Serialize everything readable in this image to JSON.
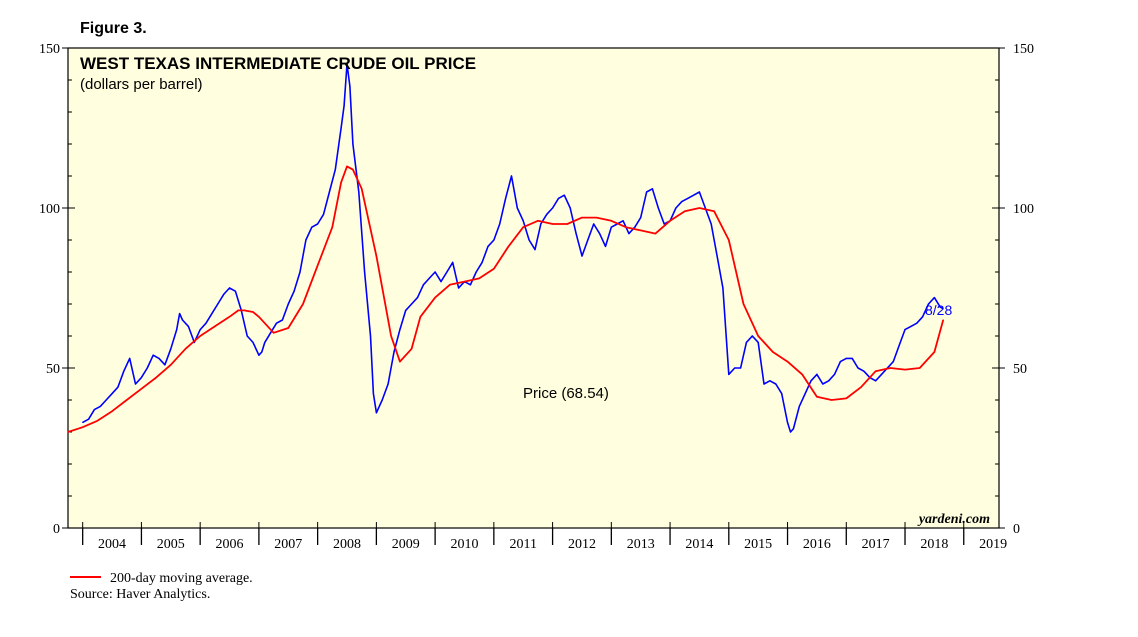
{
  "figure_label": "Figure 3.",
  "watermark": "yardeni.com",
  "footer": {
    "legend_label": "200-day moving average.",
    "source": "Source: Haver Analytics."
  },
  "colors": {
    "plot_background": "#ffffe0",
    "price": "#0000ff",
    "moving_average": "#ff0000",
    "end_label": "#0000ff"
  },
  "chart_data": {
    "type": "line",
    "title": "WEST TEXAS INTERMEDIATE CRUDE OIL PRICE",
    "subtitle": "(dollars per barrel)",
    "xlabel": "",
    "ylabel": "",
    "xlim": [
      2003.75,
      2019.6
    ],
    "ylim": [
      0,
      150
    ],
    "y_ticks": [
      0,
      50,
      100,
      150
    ],
    "x_tick_labels": [
      "2004",
      "2005",
      "2006",
      "2007",
      "2008",
      "2009",
      "2010",
      "2011",
      "2012",
      "2013",
      "2014",
      "2015",
      "2016",
      "2017",
      "2018",
      "2019"
    ],
    "grid": false,
    "legend_position": "bottom-left",
    "annotations": {
      "series_label": "Price (68.54)",
      "end_label": "8/28"
    },
    "series": [
      {
        "name": "Price",
        "x": [
          2004.0,
          2004.1,
          2004.2,
          2004.3,
          2004.4,
          2004.5,
          2004.6,
          2004.7,
          2004.8,
          2004.9,
          2005.0,
          2005.1,
          2005.2,
          2005.3,
          2005.4,
          2005.5,
          2005.6,
          2005.65,
          2005.7,
          2005.8,
          2005.9,
          2006.0,
          2006.1,
          2006.2,
          2006.3,
          2006.4,
          2006.5,
          2006.6,
          2006.7,
          2006.8,
          2006.9,
          2007.0,
          2007.05,
          2007.1,
          2007.2,
          2007.3,
          2007.4,
          2007.5,
          2007.6,
          2007.7,
          2007.8,
          2007.9,
          2008.0,
          2008.1,
          2008.2,
          2008.3,
          2008.4,
          2008.45,
          2008.5,
          2008.55,
          2008.6,
          2008.7,
          2008.8,
          2008.9,
          2008.95,
          2009.0,
          2009.1,
          2009.2,
          2009.3,
          2009.4,
          2009.5,
          2009.6,
          2009.7,
          2009.8,
          2009.9,
          2010.0,
          2010.1,
          2010.2,
          2010.3,
          2010.4,
          2010.5,
          2010.6,
          2010.7,
          2010.8,
          2010.9,
          2011.0,
          2011.1,
          2011.2,
          2011.3,
          2011.4,
          2011.5,
          2011.6,
          2011.7,
          2011.8,
          2011.9,
          2012.0,
          2012.1,
          2012.2,
          2012.3,
          2012.4,
          2012.5,
          2012.6,
          2012.7,
          2012.8,
          2012.9,
          2013.0,
          2013.1,
          2013.2,
          2013.3,
          2013.4,
          2013.5,
          2013.6,
          2013.7,
          2013.8,
          2013.9,
          2014.0,
          2014.1,
          2014.2,
          2014.3,
          2014.4,
          2014.5,
          2014.6,
          2014.7,
          2014.8,
          2014.9,
          2015.0,
          2015.1,
          2015.2,
          2015.3,
          2015.4,
          2015.5,
          2015.6,
          2015.7,
          2015.8,
          2015.9,
          2016.0,
          2016.05,
          2016.1,
          2016.2,
          2016.3,
          2016.4,
          2016.5,
          2016.6,
          2016.7,
          2016.8,
          2016.9,
          2017.0,
          2017.1,
          2017.2,
          2017.3,
          2017.4,
          2017.5,
          2017.6,
          2017.7,
          2017.8,
          2017.9,
          2018.0,
          2018.1,
          2018.2,
          2018.3,
          2018.4,
          2018.5,
          2018.6,
          2018.65
        ],
        "values": [
          33,
          34,
          37,
          38,
          40,
          42,
          44,
          49,
          53,
          45,
          47,
          50,
          54,
          53,
          51,
          56,
          62,
          67,
          65,
          63,
          58,
          62,
          64,
          67,
          70,
          73,
          75,
          74,
          68,
          60,
          58,
          54,
          55,
          58,
          61,
          64,
          65,
          70,
          74,
          80,
          90,
          94,
          95,
          98,
          105,
          112,
          125,
          132,
          145,
          138,
          120,
          105,
          80,
          60,
          42,
          36,
          40,
          45,
          55,
          62,
          68,
          70,
          72,
          76,
          78,
          80,
          77,
          80,
          83,
          75,
          77,
          76,
          80,
          83,
          88,
          90,
          95,
          103,
          110,
          100,
          96,
          90,
          87,
          95,
          98,
          100,
          103,
          104,
          100,
          92,
          85,
          90,
          95,
          92,
          88,
          94,
          95,
          96,
          92,
          94,
          97,
          105,
          106,
          100,
          95,
          96,
          100,
          102,
          103,
          104,
          105,
          100,
          95,
          85,
          75,
          48,
          50,
          50,
          58,
          60,
          58,
          45,
          46,
          45,
          42,
          33,
          30,
          31,
          38,
          42,
          46,
          48,
          45,
          46,
          48,
          52,
          53,
          53,
          50,
          49,
          47,
          46,
          48,
          50,
          52,
          57,
          62,
          63,
          64,
          66,
          70,
          72,
          69,
          68.54
        ]
      },
      {
        "name": "200-day moving average",
        "x": [
          2003.75,
          2004.0,
          2004.25,
          2004.5,
          2004.75,
          2005.0,
          2005.25,
          2005.5,
          2005.75,
          2006.0,
          2006.25,
          2006.5,
          2006.65,
          2006.75,
          2006.9,
          2007.0,
          2007.25,
          2007.5,
          2007.75,
          2008.0,
          2008.25,
          2008.4,
          2008.5,
          2008.6,
          2008.75,
          2009.0,
          2009.25,
          2009.4,
          2009.6,
          2009.75,
          2010.0,
          2010.25,
          2010.5,
          2010.75,
          2011.0,
          2011.25,
          2011.5,
          2011.75,
          2012.0,
          2012.25,
          2012.5,
          2012.75,
          2013.0,
          2013.25,
          2013.5,
          2013.75,
          2014.0,
          2014.25,
          2014.5,
          2014.75,
          2015.0,
          2015.25,
          2015.5,
          2015.75,
          2016.0,
          2016.25,
          2016.5,
          2016.75,
          2017.0,
          2017.25,
          2017.5,
          2017.75,
          2018.0,
          2018.25,
          2018.5,
          2018.65
        ],
        "values": [
          30,
          31.5,
          33.5,
          36.5,
          40,
          43.5,
          47,
          51,
          56,
          60,
          63,
          66,
          68,
          68,
          67.5,
          66,
          61,
          62.5,
          70,
          82,
          94,
          108,
          113,
          112,
          106,
          85,
          60,
          52,
          56,
          66,
          72,
          76,
          77,
          78,
          81,
          88,
          94,
          96,
          95,
          95,
          97,
          97,
          96,
          94,
          93,
          92,
          96,
          99,
          100,
          99,
          90,
          70,
          60,
          55,
          52,
          48,
          41,
          40,
          40.5,
          44,
          49,
          50,
          49.5,
          50,
          55,
          65
        ]
      }
    ]
  }
}
